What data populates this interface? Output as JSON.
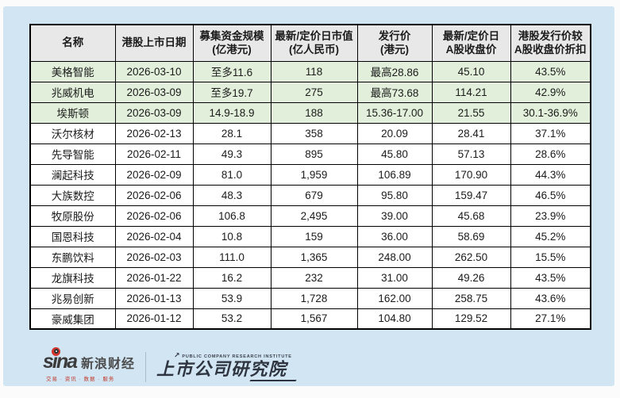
{
  "chart_data": {
    "type": "table",
    "columns": [
      "名称",
      "港股上市日期",
      "募集资金规模(亿港元)",
      "最新/定价日市值(亿人民币)",
      "发行价(港元)",
      "最新/定价日A股收盘价",
      "港股发行价较A股收盘价折扣"
    ],
    "header_lines": [
      [
        "名称"
      ],
      [
        "港股上市日期"
      ],
      [
        "募集资金规模",
        "(亿港元)"
      ],
      [
        "最新/定价日市值",
        "(亿人民币)"
      ],
      [
        "发行价",
        "(港元)"
      ],
      [
        "最新/定价日",
        "A股收盘价"
      ],
      [
        "港股发行价较",
        "A股收盘价折扣"
      ]
    ],
    "rows": [
      [
        "美格智能",
        "2026-03-10",
        "至多11.6",
        "118",
        "最高28.86",
        "45.10",
        "43.5%"
      ],
      [
        "兆威机电",
        "2026-03-09",
        "至多19.7",
        "275",
        "最高73.68",
        "114.21",
        "42.9%"
      ],
      [
        "埃斯顿",
        "2026-03-09",
        "14.9-18.9",
        "188",
        "15.36-17.00",
        "21.55",
        "30.1-36.9%"
      ],
      [
        "沃尔核材",
        "2026-02-13",
        "28.1",
        "358",
        "20.09",
        "28.41",
        "37.1%"
      ],
      [
        "先导智能",
        "2026-02-11",
        "49.3",
        "895",
        "45.80",
        "57.13",
        "28.6%"
      ],
      [
        "澜起科技",
        "2026-02-09",
        "81.0",
        "1,959",
        "106.89",
        "170.90",
        "44.3%"
      ],
      [
        "大族数控",
        "2026-02-06",
        "48.3",
        "679",
        "95.80",
        "159.47",
        "46.5%"
      ],
      [
        "牧原股份",
        "2026-02-06",
        "106.8",
        "2,495",
        "39.00",
        "45.68",
        "23.9%"
      ],
      [
        "国恩科技",
        "2026-02-04",
        "10.8",
        "159",
        "36.00",
        "58.69",
        "45.2%"
      ],
      [
        "东鹏饮料",
        "2026-02-03",
        "111.0",
        "1,365",
        "248.00",
        "262.50",
        "15.5%"
      ],
      [
        "龙旗科技",
        "2026-01-22",
        "16.2",
        "232",
        "31.00",
        "49.26",
        "43.5%"
      ],
      [
        "兆易创新",
        "2026-01-13",
        "53.9",
        "1,728",
        "162.00",
        "258.75",
        "43.6%"
      ],
      [
        "豪威集团",
        "2026-01-12",
        "53.2",
        "1,567",
        "104.80",
        "129.52",
        "27.1%"
      ]
    ],
    "highlighted_row_indices": [
      0,
      1,
      2
    ],
    "legend_position": "none",
    "grid": true
  },
  "footer": {
    "sina_word": "sina",
    "sina_brand": "新浪财经",
    "sina_tagline": "交易 · 资讯 · 数据 · 服务",
    "institute_small": "PUBLIC COMPANY RESEARCH INSTITUTE",
    "institute_name": "上市公司研究院"
  },
  "colors": {
    "panel_bg": "#d2e5f3",
    "header_bg": "#e8e8e8",
    "highlight_row_bg": "#e2efda",
    "row_bg": "#ffffff",
    "table_border": "#000000",
    "sina_red": "#d5342c",
    "logo_dark": "#2e3540"
  }
}
